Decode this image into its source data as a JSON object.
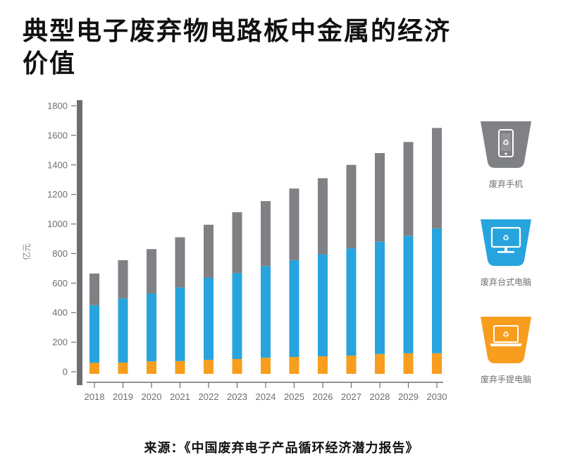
{
  "title": "典型电子废弃物电路板中金属的经济价值",
  "source": "来源：《中国废弃电子产品循环经济潜力报告》",
  "colors": {
    "phone": "#808184",
    "desktop": "#27a4de",
    "laptop": "#f89d1e",
    "axis": "#6d6e71"
  },
  "legend": [
    {
      "key": "phone",
      "label": "废弃手机",
      "icon": "phone-bin-icon"
    },
    {
      "key": "desktop",
      "label": "废弃台式电脑",
      "icon": "desktop-bin-icon"
    },
    {
      "key": "laptop",
      "label": "废弃手提电脑",
      "icon": "laptop-bin-icon"
    }
  ],
  "chart_data": {
    "type": "bar",
    "stacked": true,
    "title": "典型电子废弃物电路板中金属的经济价值",
    "xlabel": "",
    "ylabel": "亿元",
    "ylim": [
      0,
      1800
    ],
    "yticks": [
      0,
      200,
      400,
      600,
      800,
      1000,
      1200,
      1400,
      1600,
      1800
    ],
    "grid": false,
    "legend_position": "right",
    "categories": [
      "2018",
      "2019",
      "2020",
      "2021",
      "2022",
      "2023",
      "2024",
      "2025",
      "2026",
      "2027",
      "2028",
      "2029",
      "2030"
    ],
    "series": [
      {
        "name": "废弃手提电脑",
        "key": "laptop",
        "values": [
          60,
          62,
          70,
          72,
          80,
          86,
          95,
          100,
          105,
          110,
          120,
          125,
          125
        ]
      },
      {
        "name": "废弃台式电脑",
        "key": "desktop",
        "values": [
          390,
          433,
          460,
          498,
          555,
          582,
          620,
          655,
          690,
          725,
          760,
          795,
          845
        ]
      },
      {
        "name": "废弃手机",
        "key": "phone",
        "values": [
          215,
          260,
          300,
          340,
          360,
          412,
          440,
          485,
          515,
          565,
          600,
          635,
          680
        ]
      }
    ],
    "totals": [
      665,
      755,
      830,
      910,
      995,
      1080,
      1155,
      1240,
      1310,
      1400,
      1480,
      1555,
      1650
    ]
  }
}
